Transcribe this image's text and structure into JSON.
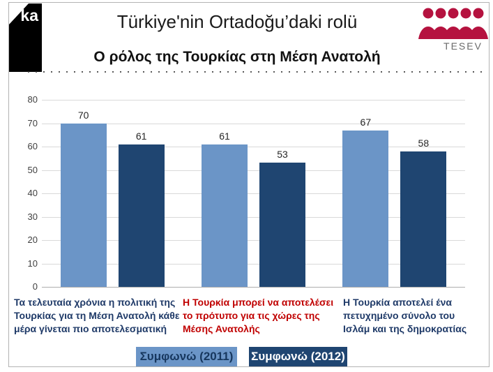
{
  "header": {
    "logo_text": "ka",
    "title": "Türkiye'nin Ortadoğu’daki rolü",
    "subtitle": "Ο ρόλος της Τουρκίας στη Μέση Ανατολή",
    "brand_name": "TESEV",
    "brand_color": "#b5123f"
  },
  "chart_data": {
    "type": "bar",
    "title": "Türkiye'nin Ortadoğu’daki rolü",
    "subtitle": "Ο ρόλος της Τουρκίας στη Μέση Ανατολή",
    "categories": [
      "Τα τελευταία χρόνια η πολιτική της Τουρκίας για τη Μέση Ανατολή κάθε μέρα γίνεται πιο αποτελεσματική",
      "Η Τουρκία μπορεί να αποτελέσει το πρότυπο για τις χώρες της Μέσης Ανατολής",
      "Η Τουρκία αποτελεί ένα πετυχημένο σύνολο του Ισλάμ και της δημοκρατίας"
    ],
    "category_colors": [
      "#1f3a68",
      "#c00000",
      "#1f3a68"
    ],
    "series": [
      {
        "name": "Συμφωνώ (2011)",
        "color": "#6b95c7",
        "text_color": "#17375e",
        "values": [
          70,
          61,
          67
        ]
      },
      {
        "name": "Συμφωνώ (2012)",
        "color": "#1f4571",
        "text_color": "#ffffff",
        "values": [
          61,
          53,
          58
        ]
      }
    ],
    "ylim": [
      0,
      80
    ],
    "ytick_step": 10,
    "grid": true,
    "value_labels": true,
    "legend_position": "bottom",
    "xlabel": "",
    "ylabel": ""
  }
}
